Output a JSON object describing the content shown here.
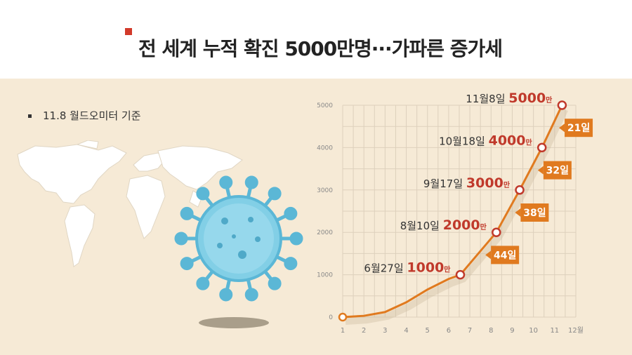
{
  "title": "전 세계 누적 확진 5000만명···가파른 증가세",
  "note": "11.8 월드오미터 기준",
  "colors": {
    "accent": "#c0392b",
    "line": "#e07a1f",
    "badge": "#e07a1f",
    "grid": "#ddd0bc"
  },
  "chart_data": {
    "type": "line",
    "xlim": [
      1,
      12
    ],
    "ylim": [
      0,
      5000
    ],
    "x_ticks": [
      "1",
      "2",
      "3",
      "4",
      "5",
      "6",
      "7",
      "8",
      "9",
      "10",
      "11",
      "12월"
    ],
    "y_ticks": [
      "0",
      "1000",
      "2000",
      "3000",
      "4000",
      "5000"
    ],
    "series": [
      {
        "x": [
          1,
          2,
          3,
          4,
          5,
          6,
          6.55,
          8.25,
          9.35,
          10.4,
          11.35
        ],
        "y": [
          0,
          30,
          120,
          350,
          650,
          900,
          1000,
          2000,
          3000,
          4000,
          5000
        ]
      }
    ],
    "milestones": [
      {
        "x": 6.55,
        "y": 1000,
        "date": "6월27일",
        "value": "1000",
        "unit": "만"
      },
      {
        "x": 8.25,
        "y": 2000,
        "date": "8월10일",
        "value": "2000",
        "unit": "만"
      },
      {
        "x": 9.35,
        "y": 3000,
        "date": "9월17일",
        "value": "3000",
        "unit": "만"
      },
      {
        "x": 10.4,
        "y": 4000,
        "date": "10월18일",
        "value": "4000",
        "unit": "만"
      },
      {
        "x": 11.35,
        "y": 5000,
        "date": "11월8일",
        "value": "5000",
        "unit": "만"
      }
    ],
    "intervals": [
      "44일",
      "38일",
      "32일",
      "21일"
    ]
  }
}
